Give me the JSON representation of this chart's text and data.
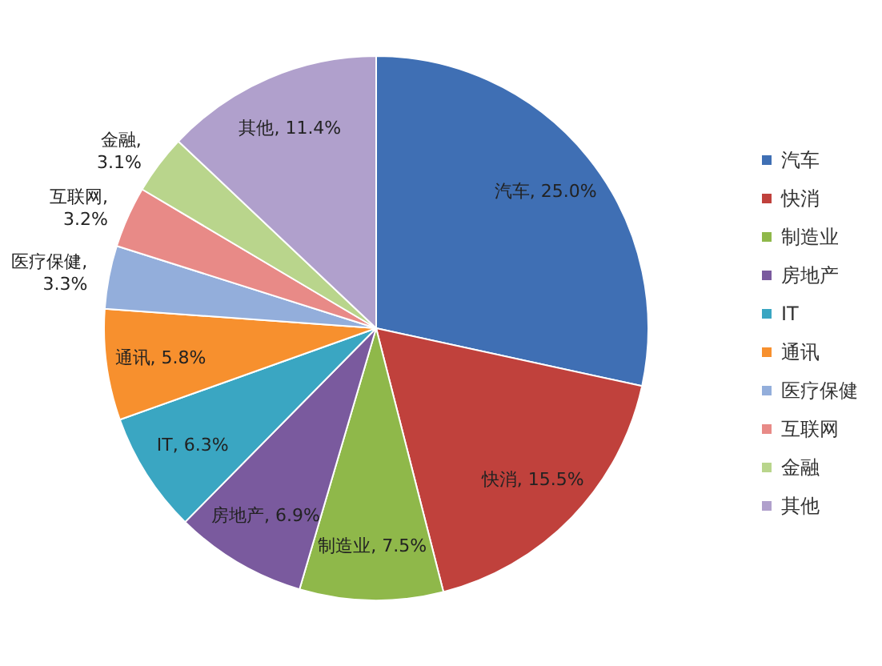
{
  "chart_data": {
    "type": "pie",
    "categories": [
      "汽车",
      "快消",
      "制造业",
      "房地产",
      "IT",
      "通讯",
      "医疗保健",
      "互联网",
      "金融",
      "其他"
    ],
    "values": [
      25.0,
      15.5,
      7.5,
      6.9,
      6.3,
      5.8,
      3.3,
      3.2,
      3.1,
      11.4
    ],
    "value_labels": [
      "汽车, 25.0%",
      "快消, 15.5%",
      "制造业, 7.5%",
      "房地产, 6.9%",
      "IT, 6.3%",
      "通讯, 5.8%",
      "医疗保健, 3.3%",
      "互联网, 3.2%",
      "金融, 3.1%",
      "其他, 11.4%"
    ],
    "colors": [
      "#3f6fb4",
      "#c0413c",
      "#8fb84a",
      "#7a5a9e",
      "#3aa6c2",
      "#f7902e",
      "#93aedb",
      "#e88a87",
      "#b9d58c",
      "#b0a0cc"
    ],
    "legend": "right"
  }
}
